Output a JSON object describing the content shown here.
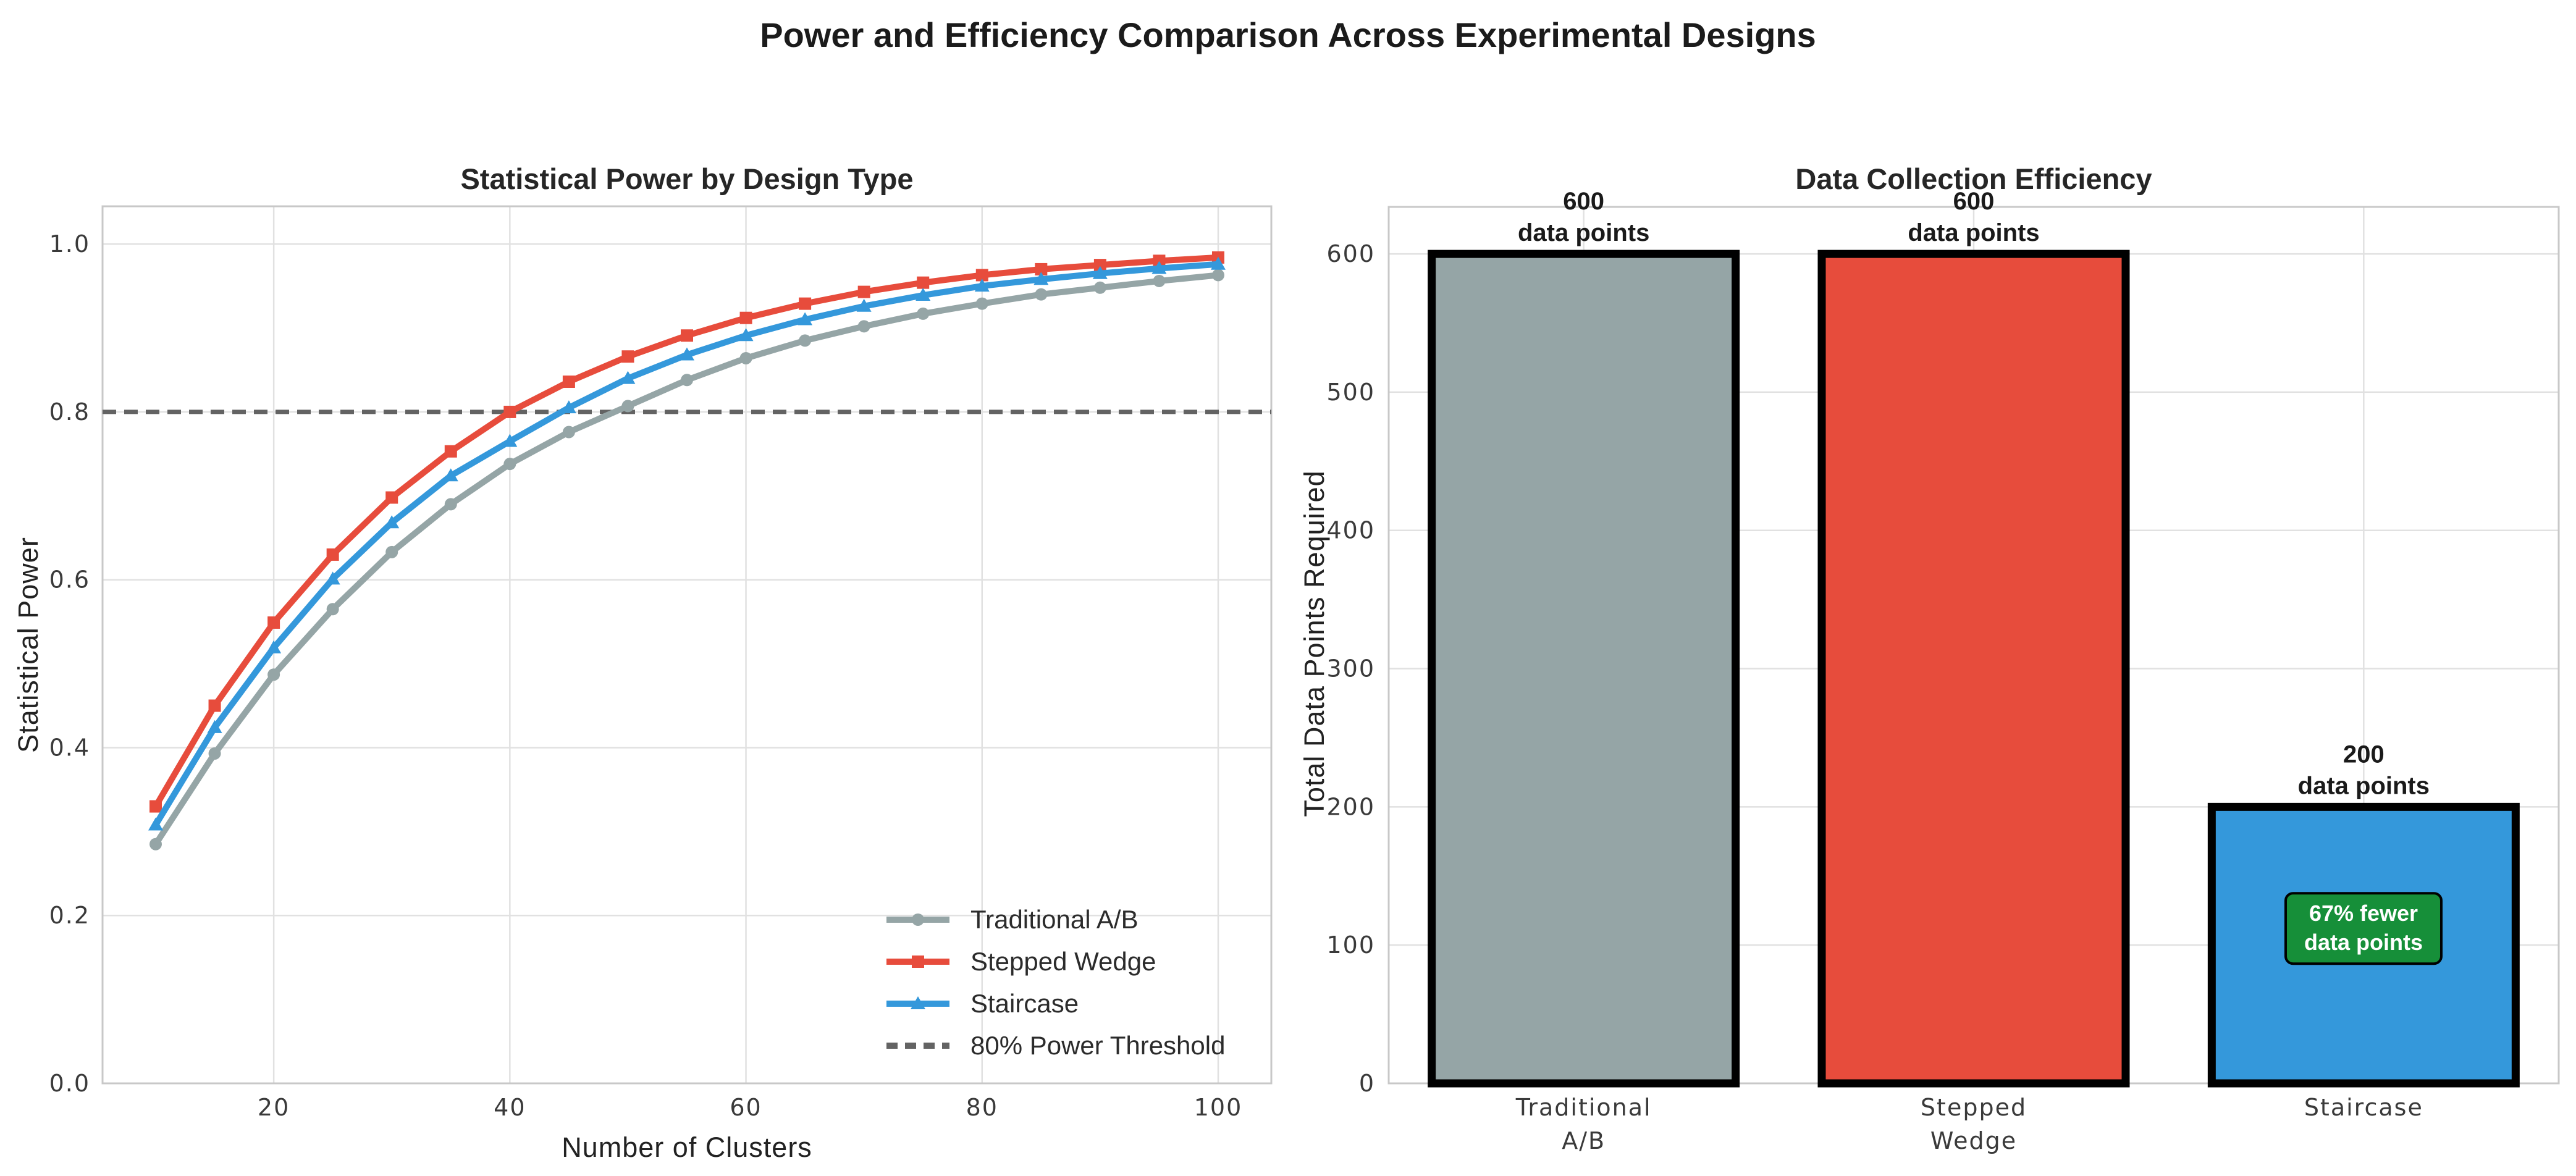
{
  "figure": {
    "title": "Power and Efficiency Comparison Across Experimental Designs"
  },
  "chart_data": [
    {
      "type": "line",
      "title": "Statistical Power by Design Type",
      "xlabel": "Number of Clusters",
      "ylabel": "Statistical Power",
      "xlim": [
        5.5,
        104.5
      ],
      "ylim": [
        0,
        1.045
      ],
      "xticks": [
        20,
        40,
        60,
        80,
        100
      ],
      "xtick_labels": [
        "20",
        "40",
        "60",
        "80",
        "100"
      ],
      "yticks": [
        0,
        0.2,
        0.4,
        0.6,
        0.8,
        1.0
      ],
      "ytick_labels": [
        "0.0",
        "0.2",
        "0.4",
        "0.6",
        "0.8",
        "1.0"
      ],
      "grid": true,
      "legend_position": "lower right",
      "x": [
        10,
        15,
        20,
        25,
        30,
        35,
        40,
        45,
        50,
        55,
        60,
        65,
        70,
        75,
        80,
        85,
        90,
        95,
        100
      ],
      "series": [
        {
          "name": "Traditional A/B",
          "color": "#95a5a6",
          "marker": "circle",
          "values": [
            0.285,
            0.393,
            0.487,
            0.565,
            0.633,
            0.69,
            0.738,
            0.776,
            0.807,
            0.838,
            0.864,
            0.885,
            0.902,
            0.917,
            0.929,
            0.94,
            0.948,
            0.956,
            0.963
          ]
        },
        {
          "name": "Stepped Wedge",
          "color": "#e74c3c",
          "marker": "square",
          "values": [
            0.33,
            0.45,
            0.549,
            0.63,
            0.698,
            0.753,
            0.8,
            0.836,
            0.866,
            0.891,
            0.912,
            0.929,
            0.943,
            0.954,
            0.963,
            0.97,
            0.975,
            0.98,
            0.984
          ]
        },
        {
          "name": "Staircase",
          "color": "#3498db",
          "marker": "triangle",
          "values": [
            0.308,
            0.424,
            0.519,
            0.601,
            0.668,
            0.724,
            0.765,
            0.805,
            0.84,
            0.868,
            0.891,
            0.91,
            0.926,
            0.939,
            0.95,
            0.958,
            0.965,
            0.971,
            0.976
          ]
        }
      ],
      "threshold": {
        "label": "80% Power Threshold",
        "value": 0.8,
        "color": "#636363",
        "style": "dashed"
      }
    },
    {
      "type": "bar",
      "title": "Data Collection Efficiency",
      "ylabel": "Total Data Points Required",
      "categories": [
        "Traditional\nA/B",
        "Stepped\nWedge",
        "Staircase"
      ],
      "values": [
        600,
        600,
        200
      ],
      "bar_colors": [
        "#95a5a6",
        "#e74c3c",
        "#3498db"
      ],
      "bar_edge_color": "#000000",
      "bar_labels": [
        "600\ndata points",
        "600\ndata points",
        "200\ndata points"
      ],
      "ylim": [
        0,
        634
      ],
      "yticks": [
        0,
        100,
        200,
        300,
        400,
        500,
        600
      ],
      "ytick_labels": [
        "0",
        "100",
        "200",
        "300",
        "400",
        "500",
        "600"
      ],
      "grid": true,
      "annotation": {
        "text": "67% fewer\ndata points",
        "category": "Staircase",
        "y": 110,
        "bg_color": "#168f39",
        "border_color": "#000000",
        "text_color": "#ffffff"
      }
    }
  ]
}
